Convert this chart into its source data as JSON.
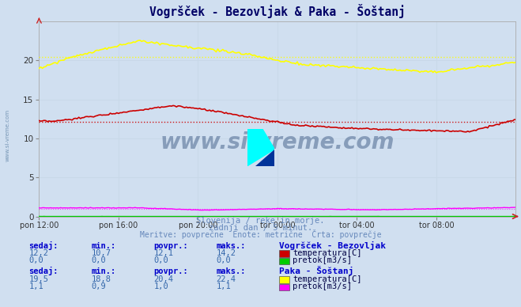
{
  "title": "Vogršček - Bezovljak & Paka - Šoštanj",
  "bg_color": "#d0dff0",
  "plot_bg_color": "#d0dff0",
  "x_labels": [
    "pon 12:00",
    "pon 16:00",
    "pon 20:00",
    "tor 00:00",
    "tor 04:00",
    "tor 08:00"
  ],
  "x_ticks": [
    0,
    48,
    96,
    144,
    192,
    240
  ],
  "x_max": 288,
  "y_min": 0,
  "y_max": 25,
  "y_ticks": [
    0,
    5,
    10,
    15,
    20
  ],
  "grid_color": "#c8d8e8",
  "watermark": "www.si-vreme.com",
  "watermark_color": "#1a3a6a",
  "watermark_alpha": 0.4,
  "sub_text1": "Slovenija / reke in morje.",
  "sub_text2": "zadnji dan / 5 minut.",
  "sub_text3": "Meritve: povprečne  Enote: metrične  Črta: povprečje",
  "sub_text_color": "#6688bb",
  "title_color": "#000066",
  "station1_name": "Vogršček - Bezovljak",
  "station1_temp_color": "#cc0000",
  "station1_flow_color": "#00cc00",
  "station1_temp_avg": 12.1,
  "station1_flow_avg": 0.0,
  "station2_name": "Paka - Šoštanj",
  "station2_temp_color": "#ffff00",
  "station2_flow_color": "#ff00ff",
  "station2_temp_avg": 20.4,
  "station2_flow_avg": 1.0,
  "table_header_color": "#0000cc",
  "table_value_color": "#3366aa",
  "legend_text_color": "#000044",
  "station1_sedaj": "12,2",
  "station1_min": "10,7",
  "station1_povpr": "12,1",
  "station1_maks": "14,2",
  "station1_flow_sedaj": "0,0",
  "station1_flow_min": "0,0",
  "station1_flow_povpr": "0,0",
  "station1_flow_maks": "0,0",
  "station2_sedaj": "19,5",
  "station2_min": "18,8",
  "station2_povpr": "20,4",
  "station2_maks": "22,4",
  "station2_flow_sedaj": "1,1",
  "station2_flow_min": "0,9",
  "station2_flow_povpr": "1,0",
  "station2_flow_maks": "1,1"
}
